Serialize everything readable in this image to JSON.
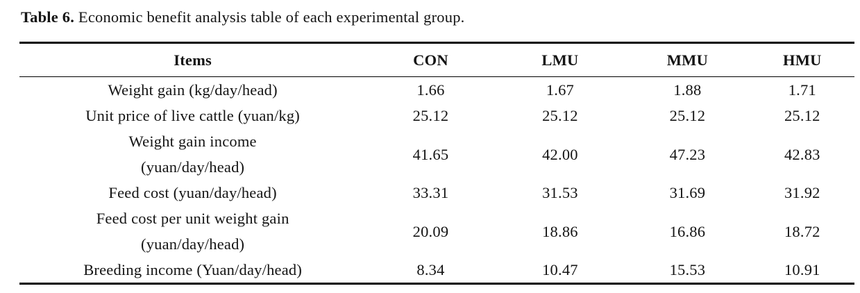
{
  "caption": {
    "label": "Table 6.",
    "text": "Economic benefit analysis table of each experimental group."
  },
  "table": {
    "columns": [
      "Items",
      "CON",
      "LMU",
      "MMU",
      "HMU"
    ],
    "rows": [
      {
        "label": "Weight gain (kg/day/head)",
        "label2": "",
        "values": [
          "1.66",
          "1.67",
          "1.88",
          "1.71"
        ]
      },
      {
        "label": "Unit price of live cattle (yuan/kg)",
        "label2": "",
        "values": [
          "25.12",
          "25.12",
          "25.12",
          "25.12"
        ]
      },
      {
        "label": "Weight gain income",
        "label2": "(yuan/day/head)",
        "values": [
          "41.65",
          "42.00",
          "47.23",
          "42.83"
        ]
      },
      {
        "label": "Feed cost (yuan/day/head)",
        "label2": "",
        "values": [
          "33.31",
          "31.53",
          "31.69",
          "31.92"
        ]
      },
      {
        "label": "Feed cost per unit weight gain",
        "label2": "(yuan/day/head)",
        "values": [
          "20.09",
          "18.86",
          "16.86",
          "18.72"
        ]
      },
      {
        "label": "Breeding income (Yuan/day/head)",
        "label2": "",
        "values": [
          "8.34",
          "10.47",
          "15.53",
          "10.91"
        ]
      }
    ]
  },
  "colors": {
    "text": "#141414",
    "rule": "#000000",
    "background": "#ffffff"
  }
}
